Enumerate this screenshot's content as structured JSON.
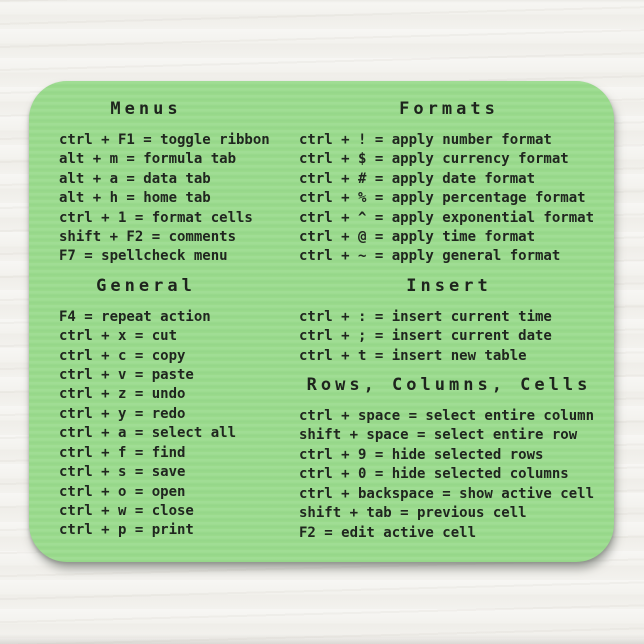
{
  "product": {
    "description_visible_text_only": ""
  },
  "colors": {
    "pad_green": "#9adb8d",
    "wood_background": "#f3f2ee",
    "text": "#20261f",
    "shadow": "#686e66"
  },
  "columns": [
    {
      "sections": [
        {
          "heading": "Menus",
          "lines": [
            "ctrl + F1 = toggle ribbon",
            "alt + m = formula tab",
            "alt + a = data tab",
            "alt + h = home tab",
            "ctrl + 1 = format cells",
            "shift + F2 = comments",
            "F7 = spellcheck menu"
          ]
        },
        {
          "heading": "General",
          "lines": [
            "F4 = repeat action",
            "ctrl + x = cut",
            "ctrl + c = copy",
            "ctrl + v = paste",
            "ctrl + z = undo",
            "ctrl + y = redo",
            "ctrl + a = select all",
            "ctrl + f = find",
            "ctrl + s = save",
            "ctrl + o = open",
            "ctrl + w = close",
            "ctrl + p = print"
          ]
        }
      ]
    },
    {
      "sections": [
        {
          "heading": "Formats",
          "lines": [
            "ctrl + ! = apply number format",
            "ctrl + $ = apply currency format",
            "ctrl + # = apply date format",
            "ctrl + % = apply percentage format",
            "ctrl + ^ = apply exponential format",
            "ctrl + @ = apply time format",
            "ctrl + ~ = apply general format"
          ]
        },
        {
          "heading": "Insert",
          "lines": [
            "ctrl + : = insert current time",
            "ctrl + ; = insert current date",
            "ctrl + t = insert new table"
          ]
        },
        {
          "heading": "Rows, Columns, Cells",
          "lines": [
            "ctrl + space = select entire column",
            "shift + space = select entire row",
            "ctrl + 9 = hide selected rows",
            "ctrl + 0 = hide selected columns",
            "ctrl + backspace = show active cell",
            "shift + tab = previous cell",
            "F2 = edit active cell"
          ]
        }
      ]
    }
  ]
}
